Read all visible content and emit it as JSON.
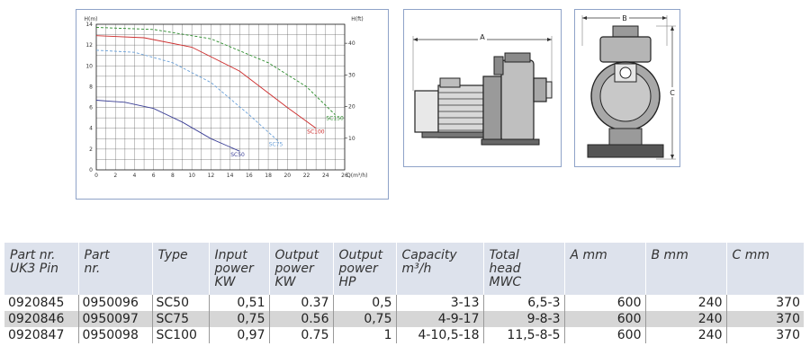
{
  "chart_data": {
    "type": "line",
    "title": "",
    "xlabel": "Q(m³/h)",
    "ylabel_left": "H(m)",
    "ylabel_right": "H(ft)",
    "xlim": [
      0,
      26
    ],
    "ylim": [
      0,
      14
    ],
    "y2lim": [
      0,
      46
    ],
    "x_ticks": [
      "0",
      "2",
      "4",
      "6",
      "8",
      "10",
      "12",
      "14",
      "16",
      "18",
      "20",
      "22",
      "24",
      "26"
    ],
    "y_ticks": [
      "0",
      "2",
      "4",
      "6",
      "8",
      "10",
      "12",
      "14"
    ],
    "y2_ticks": [
      "10",
      "20",
      "30",
      "40"
    ],
    "grid": true,
    "legend": "none",
    "series": [
      {
        "name": "SC50",
        "color": "#3b3f96",
        "style": "solid",
        "x": [
          0,
          3,
          6,
          9,
          12,
          15
        ],
        "y": [
          6.7,
          6.5,
          5.9,
          4.6,
          3.0,
          1.8
        ]
      },
      {
        "name": "SC75",
        "color": "#6aa0d8",
        "style": "dashed",
        "x": [
          0,
          4,
          8,
          12,
          16,
          19
        ],
        "y": [
          11.5,
          11.3,
          10.3,
          8.4,
          5.3,
          2.8
        ]
      },
      {
        "name": "SC100",
        "color": "#cc2a2a",
        "style": "solid",
        "x": [
          0,
          5,
          10,
          15,
          20,
          23
        ],
        "y": [
          12.9,
          12.7,
          11.8,
          9.5,
          6.0,
          4.0
        ]
      },
      {
        "name": "SC150",
        "color": "#2a8a2a",
        "style": "dashed",
        "x": [
          0,
          6,
          12,
          18,
          22,
          25
        ],
        "y": [
          13.7,
          13.5,
          12.6,
          10.3,
          8.0,
          5.3
        ]
      }
    ]
  },
  "drawings": {
    "side_dimension": "A",
    "front_width_dimension": "B",
    "front_height_dimension": "C"
  },
  "table": {
    "headers": [
      [
        "Part nr.",
        "UK3 Pin"
      ],
      [
        "Part",
        "nr."
      ],
      [
        "Type"
      ],
      [
        "Input",
        "power",
        "KW"
      ],
      [
        "Output",
        "power",
        "KW"
      ],
      [
        "Output",
        "power",
        "HP"
      ],
      [
        "Capacity",
        "m³/h"
      ],
      [
        "Total",
        "head",
        "MWC"
      ],
      [
        "A mm"
      ],
      [
        "B mm"
      ],
      [
        "C mm"
      ]
    ],
    "rows": [
      [
        "0920845",
        "0950096",
        "SC50",
        "0,51",
        "0.37",
        "0,5",
        "3-13",
        "6,5-3",
        "600",
        "240",
        "370"
      ],
      [
        "0920846",
        "0950097",
        "SC75",
        "0,75",
        "0.56",
        "0,75",
        "4-9-17",
        "9-8-3",
        "600",
        "240",
        "370"
      ],
      [
        "0920847",
        "0950098",
        "SC100",
        "0,97",
        "0.75",
        "1",
        "4-10,5-18",
        "11,5-8-5",
        "600",
        "240",
        "370"
      ]
    ]
  }
}
